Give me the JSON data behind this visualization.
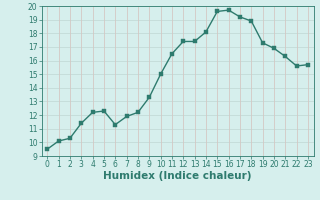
{
  "x": [
    0,
    1,
    2,
    3,
    4,
    5,
    6,
    7,
    8,
    9,
    10,
    11,
    12,
    13,
    14,
    15,
    16,
    17,
    18,
    19,
    20,
    21,
    22,
    23
  ],
  "y": [
    9.5,
    10.1,
    10.3,
    11.4,
    12.2,
    12.3,
    11.3,
    11.9,
    12.2,
    13.3,
    15.0,
    16.5,
    17.4,
    17.4,
    18.1,
    19.6,
    19.7,
    19.2,
    18.9,
    17.3,
    16.9,
    16.3,
    15.6,
    15.7
  ],
  "line_color": "#2e7b6e",
  "marker_color": "#2e7b6e",
  "bg_color": "#d6efed",
  "grid_h_color": "#c4dbd8",
  "grid_v_color": "#d4c8c4",
  "xlabel": "Humidex (Indice chaleur)",
  "xlim": [
    -0.5,
    23.5
  ],
  "ylim": [
    9,
    20
  ],
  "yticks": [
    9,
    10,
    11,
    12,
    13,
    14,
    15,
    16,
    17,
    18,
    19,
    20
  ],
  "xticks": [
    0,
    1,
    2,
    3,
    4,
    5,
    6,
    7,
    8,
    9,
    10,
    11,
    12,
    13,
    14,
    15,
    16,
    17,
    18,
    19,
    20,
    21,
    22,
    23
  ],
  "tick_fontsize": 5.5,
  "label_fontsize": 7.5,
  "marker_size": 2.2,
  "line_width": 1.0,
  "tick_color": "#2e7b6e",
  "label_color": "#2e7b6e"
}
